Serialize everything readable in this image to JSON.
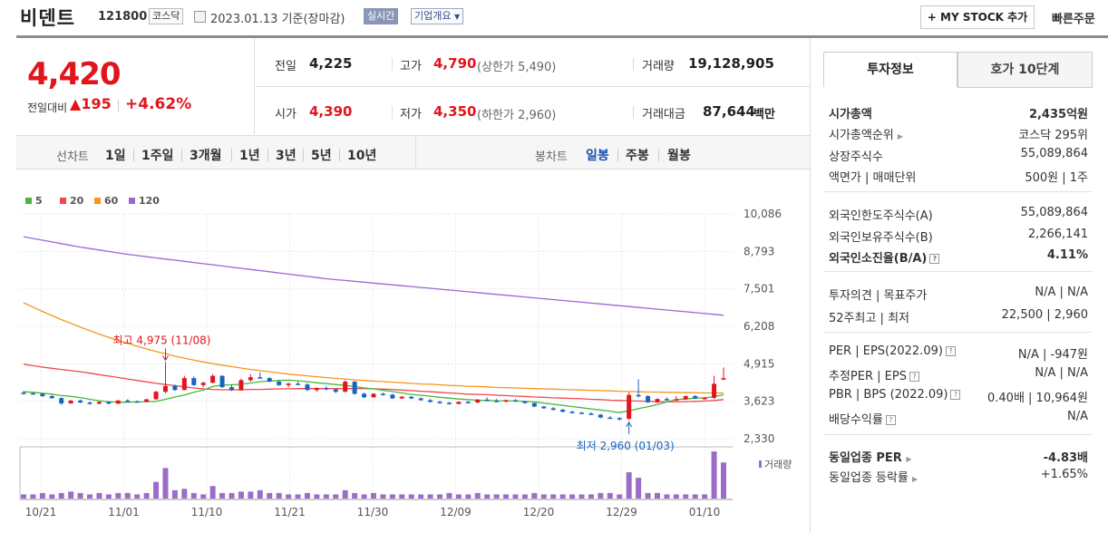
{
  "header": {
    "name": "비덴트",
    "code": "121800",
    "market": "코스닥",
    "date": "2023.01.13 기준(장마감)",
    "realtime": "실시간",
    "company_overview": "기업개요",
    "mystock": "+ MY STOCK 추가",
    "quick_order": "빠른주문"
  },
  "price": {
    "current": "4,420",
    "change_label": "전일대비",
    "change": "195",
    "change_rate": "+4.62%",
    "prev_label": "전일",
    "prev": "4,225",
    "high_label": "고가",
    "high": "4,790",
    "upper_limit": "(상한가 5,490)",
    "volume_label": "거래량",
    "volume": "19,128,905",
    "open_label": "시가",
    "open": "4,390",
    "low_label": "저가",
    "low": "4,350",
    "lower_limit": "(하한가 2,960)",
    "amount_label": "거래대금",
    "amount": "87,644",
    "amount_unit": "백만"
  },
  "range": {
    "line_label": "선차트",
    "items": [
      "1일",
      "1주일",
      "3개월",
      "1년",
      "3년",
      "5년",
      "10년"
    ],
    "candle_label": "봉차트",
    "candles": [
      "일봉",
      "주봉",
      "월봉"
    ]
  },
  "chart_data": {
    "type": "line",
    "legend": [
      "5",
      "20",
      "60",
      "120"
    ],
    "colors": [
      "#47b83b",
      "#f0484d",
      "#f7951d",
      "#9c67d1"
    ],
    "y_ticks": [
      "10,086",
      "8,793",
      "7,501",
      "6,208",
      "4,915",
      "3,623",
      "2,330"
    ],
    "ylim": [
      2330,
      10086
    ],
    "x_ticks": [
      "10/21",
      "11/01",
      "11/10",
      "11/21",
      "11/30",
      "12/09",
      "12/20",
      "12/29",
      "01/10"
    ],
    "high_annotation": "최고 4,975 (11/08)",
    "low_annotation": "최저 2,960 (01/03)",
    "volume_label": "거래량",
    "candles": [
      [
        3920,
        3980,
        3860,
        3900
      ],
      [
        3900,
        3940,
        3850,
        3880
      ],
      [
        3880,
        3900,
        3770,
        3800
      ],
      [
        3800,
        3840,
        3710,
        3730
      ],
      [
        3730,
        3760,
        3500,
        3550
      ],
      [
        3550,
        3660,
        3540,
        3650
      ],
      [
        3650,
        3680,
        3560,
        3580
      ],
      [
        3580,
        3620,
        3500,
        3540
      ],
      [
        3540,
        3620,
        3520,
        3600
      ],
      [
        3600,
        3620,
        3520,
        3540
      ],
      [
        3540,
        3660,
        3530,
        3650
      ],
      [
        3650,
        3690,
        3600,
        3620
      ],
      [
        3620,
        3650,
        3580,
        3600
      ],
      [
        3600,
        3700,
        3590,
        3690
      ],
      [
        3690,
        3980,
        3680,
        3950
      ],
      [
        3950,
        4975,
        3900,
        4150
      ],
      [
        4150,
        4200,
        3980,
        4010
      ],
      [
        4010,
        4500,
        4000,
        4420
      ],
      [
        4420,
        4480,
        4150,
        4180
      ],
      [
        4180,
        4300,
        4100,
        4260
      ],
      [
        4260,
        4560,
        4250,
        4500
      ],
      [
        4500,
        4520,
        4080,
        4110
      ],
      [
        4110,
        4200,
        3980,
        4000
      ],
      [
        4000,
        4400,
        3990,
        4350
      ],
      [
        4350,
        4560,
        4300,
        4450
      ],
      [
        4450,
        4620,
        4400,
        4420
      ],
      [
        4420,
        4460,
        4280,
        4300
      ],
      [
        4300,
        4350,
        4150,
        4180
      ],
      [
        4180,
        4260,
        4100,
        4230
      ],
      [
        4230,
        4300,
        4180,
        4200
      ],
      [
        4200,
        4250,
        3980,
        4010
      ],
      [
        4010,
        4100,
        3950,
        4080
      ],
      [
        4080,
        4150,
        4000,
        4030
      ],
      [
        4030,
        4060,
        3900,
        3950
      ],
      [
        3950,
        4350,
        3940,
        4300
      ],
      [
        4300,
        4320,
        3850,
        3880
      ],
      [
        3880,
        3920,
        3730,
        3760
      ],
      [
        3760,
        3900,
        3750,
        3880
      ],
      [
        3880,
        3920,
        3820,
        3850
      ],
      [
        3850,
        3880,
        3700,
        3720
      ],
      [
        3720,
        3800,
        3700,
        3780
      ],
      [
        3780,
        3800,
        3690,
        3720
      ],
      [
        3720,
        3760,
        3640,
        3660
      ],
      [
        3660,
        3700,
        3580,
        3600
      ],
      [
        3600,
        3650,
        3540,
        3570
      ],
      [
        3570,
        3600,
        3510,
        3530
      ],
      [
        3530,
        3620,
        3520,
        3600
      ],
      [
        3600,
        3640,
        3560,
        3580
      ],
      [
        3580,
        3700,
        3560,
        3680
      ],
      [
        3680,
        3760,
        3620,
        3640
      ],
      [
        3640,
        3700,
        3590,
        3610
      ],
      [
        3610,
        3680,
        3580,
        3660
      ],
      [
        3660,
        3700,
        3600,
        3620
      ],
      [
        3620,
        3640,
        3540,
        3560
      ],
      [
        3560,
        3580,
        3420,
        3440
      ],
      [
        3440,
        3460,
        3360,
        3380
      ],
      [
        3380,
        3420,
        3300,
        3330
      ],
      [
        3330,
        3360,
        3240,
        3260
      ],
      [
        3260,
        3300,
        3200,
        3230
      ],
      [
        3230,
        3260,
        3180,
        3200
      ],
      [
        3200,
        3250,
        3140,
        3160
      ],
      [
        3160,
        3180,
        3040,
        3060
      ],
      [
        3060,
        3120,
        3020,
        3040
      ],
      [
        3040,
        3080,
        2960,
        3020
      ],
      [
        3020,
        3930,
        2960,
        3840
      ],
      [
        3840,
        4380,
        3750,
        3800
      ],
      [
        3800,
        3830,
        3560,
        3590
      ],
      [
        3590,
        3720,
        3560,
        3700
      ],
      [
        3700,
        3760,
        3640,
        3680
      ],
      [
        3680,
        3800,
        3660,
        3690
      ],
      [
        3690,
        3820,
        3670,
        3800
      ],
      [
        3800,
        3840,
        3700,
        3720
      ],
      [
        3720,
        3760,
        3680,
        3740
      ],
      [
        3740,
        4500,
        3700,
        4225
      ],
      [
        4390,
        4790,
        4350,
        4420
      ]
    ],
    "ma5": [
      3950,
      3930,
      3900,
      3870,
      3820,
      3790,
      3750,
      3690,
      3640,
      3610,
      3590,
      3590,
      3600,
      3610,
      3620,
      3690,
      3770,
      3840,
      3930,
      4010,
      4130,
      4180,
      4190,
      4210,
      4250,
      4300,
      4320,
      4340,
      4350,
      4330,
      4300,
      4260,
      4230,
      4200,
      4170,
      4130,
      4080,
      4050,
      4000,
      3960,
      3910,
      3860,
      3830,
      3800,
      3760,
      3730,
      3700,
      3680,
      3660,
      3650,
      3640,
      3640,
      3630,
      3620,
      3600,
      3560,
      3520,
      3480,
      3440,
      3400,
      3360,
      3320,
      3280,
      3230,
      3290,
      3370,
      3430,
      3510,
      3600,
      3680,
      3700,
      3730,
      3740,
      3780,
      3850
    ],
    "ma20": [
      4900,
      4850,
      4800,
      4760,
      4720,
      4680,
      4640,
      4590,
      4540,
      4490,
      4440,
      4390,
      4340,
      4290,
      4240,
      4200,
      4160,
      4120,
      4080,
      4050,
      4030,
      4020,
      4020,
      4020,
      4030,
      4030,
      4040,
      4050,
      4050,
      4060,
      4060,
      4060,
      4060,
      4060,
      4060,
      4060,
      4060,
      4050,
      4040,
      4030,
      4010,
      3990,
      3970,
      3950,
      3930,
      3910,
      3890,
      3870,
      3860,
      3850,
      3830,
      3820,
      3800,
      3790,
      3770,
      3760,
      3740,
      3730,
      3720,
      3710,
      3690,
      3680,
      3660,
      3650,
      3640,
      3630,
      3620,
      3610,
      3600,
      3600,
      3610,
      3620,
      3630,
      3650,
      3680
    ],
    "ma60": [
      7020,
      6870,
      6720,
      6580,
      6440,
      6310,
      6180,
      6060,
      5940,
      5830,
      5720,
      5620,
      5520,
      5430,
      5340,
      5260,
      5180,
      5110,
      5040,
      4980,
      4920,
      4870,
      4820,
      4770,
      4720,
      4680,
      4640,
      4600,
      4560,
      4530,
      4500,
      4470,
      4440,
      4410,
      4390,
      4360,
      4340,
      4320,
      4300,
      4280,
      4260,
      4240,
      4220,
      4210,
      4190,
      4170,
      4160,
      4140,
      4130,
      4120,
      4100,
      4090,
      4080,
      4070,
      4060,
      4050,
      4040,
      4030,
      4020,
      4010,
      4000,
      3990,
      3980,
      3970,
      3960,
      3950,
      3940,
      3940,
      3930,
      3930,
      3920,
      3920,
      3910,
      3910,
      3910
    ],
    "ma120": [
      9300,
      9240,
      9180,
      9120,
      9060,
      9000,
      8940,
      8890,
      8840,
      8790,
      8740,
      8690,
      8650,
      8610,
      8570,
      8530,
      8490,
      8450,
      8410,
      8370,
      8330,
      8290,
      8250,
      8210,
      8170,
      8130,
      8090,
      8050,
      8010,
      7970,
      7930,
      7890,
      7850,
      7820,
      7790,
      7760,
      7730,
      7700,
      7670,
      7640,
      7610,
      7580,
      7550,
      7520,
      7490,
      7460,
      7430,
      7400,
      7370,
      7340,
      7310,
      7280,
      7250,
      7220,
      7190,
      7160,
      7130,
      7100,
      7070,
      7040,
      7010,
      6980,
      6950,
      6920,
      6890,
      6860,
      6830,
      6800,
      6770,
      6740,
      6710,
      6680,
      6650,
      6620,
      6590
    ],
    "volume": [
      3,
      3,
      4,
      3,
      4,
      5,
      4,
      3,
      4,
      3,
      4,
      4,
      3,
      4,
      12,
      22,
      6,
      7,
      4,
      3,
      9,
      4,
      4,
      5,
      5,
      6,
      4,
      4,
      3,
      3,
      4,
      3,
      3,
      3,
      6,
      4,
      3,
      4,
      3,
      3,
      3,
      3,
      3,
      3,
      3,
      4,
      3,
      3,
      4,
      3,
      3,
      3,
      3,
      3,
      4,
      3,
      3,
      3,
      3,
      3,
      3,
      4,
      4,
      3,
      19,
      15,
      4,
      4,
      3,
      3,
      3,
      3,
      3,
      34,
      26
    ]
  },
  "tabs": {
    "invest": "투자정보",
    "orderbook": "호가 10단계"
  },
  "info": {
    "mcap_label": "시가총액",
    "mcap": "2,435억원",
    "rank_label": "시가총액순위",
    "rank": "코스닥 295위",
    "shares_label": "상장주식수",
    "shares": "55,089,864",
    "par_label": "액면가 | 매매단위",
    "par": "500원 | 1주",
    "foreign_limit_label": "외국인한도주식수(A)",
    "foreign_limit": "55,089,864",
    "foreign_hold_label": "외국인보유주식수(B)",
    "foreign_hold": "2,266,141",
    "foreign_ratio_label": "외국인소진율(B/A)",
    "foreign_ratio": "4.11%",
    "opinion_label": "투자의견 | 목표주가",
    "opinion": "N/A | N/A",
    "w52_label": "52주최고 | 최저",
    "w52": "22,500 | 2,960",
    "per_label": "PER | EPS(2022.09)",
    "per": "N/A | -947원",
    "est_per_label": "추정PER | EPS",
    "est_per": "N/A | N/A",
    "pbr_label": "PBR | BPS (2022.09)",
    "pbr": "0.40배 | 10,964원",
    "div_label": "배당수익률",
    "div": "N/A",
    "ind_per_label": "동일업종 PER",
    "ind_per": "-4.83배",
    "ind_rate_label": "동일업종 등락률",
    "ind_rate": "+1.65%"
  }
}
